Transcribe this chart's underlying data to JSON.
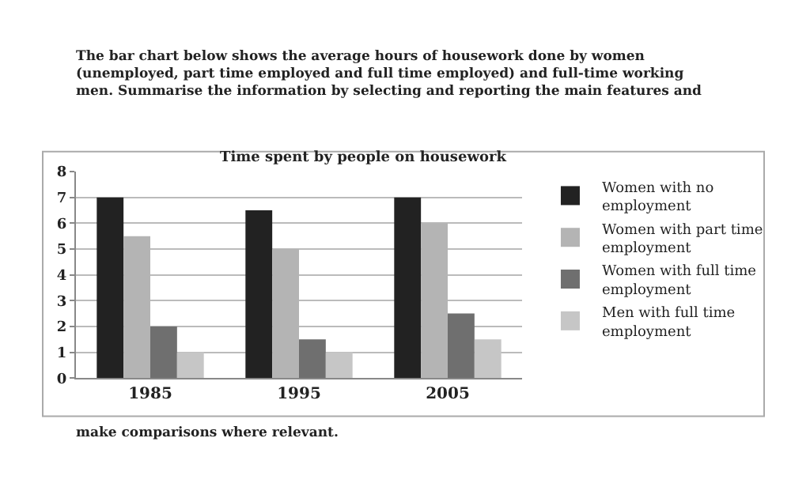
{
  "chart_data": {
    "type": "bar",
    "title": "Time spent by people on housework",
    "categories": [
      "1985",
      "1995",
      "2005"
    ],
    "series": [
      {
        "name": "Women with no employment",
        "color": "#222222",
        "values": [
          7,
          6.5,
          7
        ]
      },
      {
        "name": "Women with part time employment",
        "color": "#b4b4b4",
        "values": [
          5.5,
          5,
          6
        ]
      },
      {
        "name": "Women with full time employment",
        "color": "#6f6f6f",
        "values": [
          2,
          1.5,
          2.5
        ]
      },
      {
        "name": "Men with full time employment",
        "color": "#c6c6c6",
        "values": [
          1,
          1,
          1.5
        ]
      }
    ],
    "ylim": [
      0,
      8
    ],
    "yticks": [
      0,
      1,
      2,
      3,
      4,
      5,
      6,
      7,
      8
    ],
    "grid": "y",
    "legend": "right",
    "annotations": [
      "The bar chart below shows the average hours of housework done by women (unemployed, part time employed and full time employed) and full-time working men. Summarise the information by selecting and reporting the main features and",
      "make comparisons where relevant."
    ]
  }
}
